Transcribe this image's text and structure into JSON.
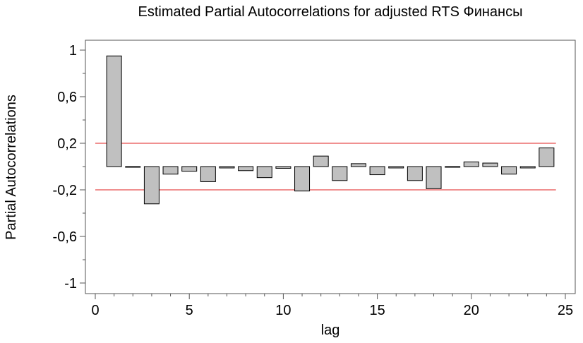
{
  "chart_data": {
    "type": "bar",
    "title": "Estimated Partial Autocorrelations for adjusted RTS Финансы",
    "xlabel": "lag",
    "ylabel": "Partial Autocorrelations",
    "xlim": [
      0,
      25
    ],
    "ylim": [
      -1.05,
      1.05
    ],
    "xticks": [
      0,
      5,
      10,
      15,
      20,
      25
    ],
    "xtick_labels": [
      "0",
      "5",
      "10",
      "15",
      "20",
      "25"
    ],
    "yticks": [
      1,
      0.6,
      0.2,
      -0.2,
      -0.6,
      -1
    ],
    "ytick_labels": [
      "1",
      "0,6",
      "0,2",
      "-0,2",
      "-0,6",
      "-1"
    ],
    "lags": [
      1,
      2,
      3,
      4,
      5,
      6,
      7,
      8,
      9,
      10,
      11,
      12,
      13,
      14,
      15,
      16,
      17,
      18,
      19,
      20,
      21,
      22,
      23,
      24
    ],
    "values": [
      0.95,
      -0.003,
      -0.32,
      -0.065,
      -0.04,
      -0.13,
      -0.012,
      -0.035,
      -0.095,
      -0.015,
      -0.21,
      0.09,
      -0.12,
      0.025,
      -0.07,
      -0.012,
      -0.12,
      -0.19,
      -0.003,
      0.04,
      0.03,
      -0.065,
      -0.012,
      0.16
    ],
    "limits": {
      "upper": 0.2,
      "lower": -0.2,
      "color": "#e02020"
    },
    "bar_color": "#c0c0c0",
    "grid": false,
    "legend": false
  }
}
